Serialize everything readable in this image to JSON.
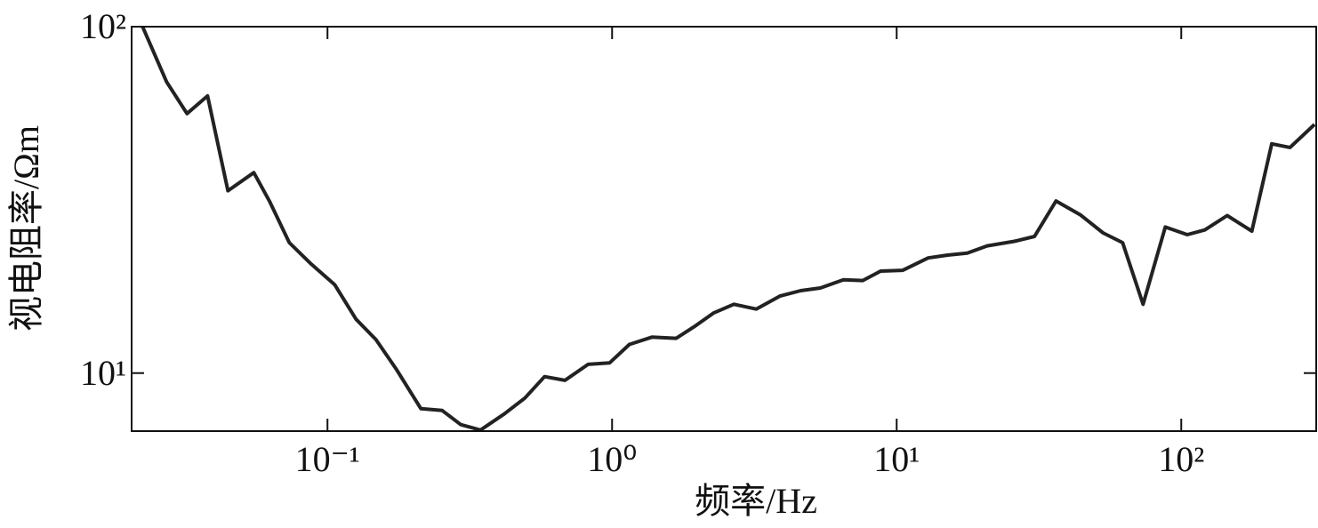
{
  "chart_data": {
    "type": "line",
    "x_label": "频率/Hz",
    "y_label": "视电阻率/Ωm",
    "x_log": true,
    "y_log": true,
    "xlim": [
      0.0205,
      298
    ],
    "ylim": [
      6.8,
      100
    ],
    "xticks": [
      {
        "value": 0.1,
        "label": "10⁻¹"
      },
      {
        "value": 1,
        "label": "10⁰"
      },
      {
        "value": 10,
        "label": "10¹"
      },
      {
        "value": 100,
        "label": "10²"
      }
    ],
    "yticks": [
      {
        "value": 10,
        "label": "10¹"
      },
      {
        "value": 100,
        "label": "10²"
      }
    ],
    "x": [
      0.0224,
      0.0272,
      0.0321,
      0.0379,
      0.0447,
      0.0551,
      0.0627,
      0.0734,
      0.0879,
      0.106,
      0.126,
      0.148,
      0.174,
      0.213,
      0.253,
      0.294,
      0.345,
      0.418,
      0.494,
      0.579,
      0.683,
      0.824,
      0.98,
      1.15,
      1.38,
      1.68,
      1.94,
      2.27,
      2.68,
      3.21,
      3.9,
      4.6,
      5.39,
      6.5,
      7.6,
      8.78,
      10.5,
      12.9,
      15.1,
      17.7,
      20.8,
      25.9,
      30.5,
      36.3,
      44.3,
      53.1,
      62.2,
      73.4,
      87.9,
      105,
      121,
      145,
      177,
      208,
      241,
      294
    ],
    "series": [
      {
        "name": "视电阻率",
        "color": "#222222",
        "values": [
          100,
          69.3,
          56.1,
          63.1,
          33.6,
          37.9,
          31.2,
          23.8,
          20.6,
          18.0,
          14.3,
          12.5,
          10.3,
          7.89,
          7.8,
          7.1,
          6.85,
          7.62,
          8.47,
          9.77,
          9.53,
          10.6,
          10.7,
          12.1,
          12.7,
          12.6,
          13.6,
          14.9,
          15.8,
          15.3,
          16.7,
          17.3,
          17.6,
          18.6,
          18.5,
          19.7,
          19.8,
          21.5,
          21.9,
          22.2,
          23.3,
          24.0,
          24.8,
          31.4,
          28.6,
          25.4,
          23.8,
          15.8,
          26.4,
          25.1,
          25.9,
          28.5,
          25.7,
          45.9,
          44.8,
          52.2
        ]
      }
    ]
  }
}
